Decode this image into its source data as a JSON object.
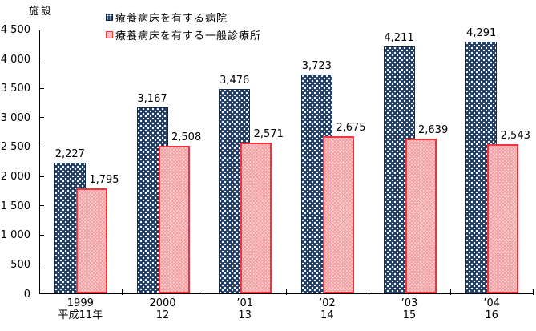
{
  "chart_data": {
    "type": "bar",
    "title": "",
    "ylabel": "施設",
    "xlabel": "",
    "grid": false,
    "legend_position": "top-center",
    "ylim": [
      0,
      4500
    ],
    "ytick_step": 500,
    "ytick_labels": [
      "4 500",
      "4 000",
      "3 500",
      "3 000",
      "2 500",
      "2 000",
      "1 500",
      "1 000",
      "500",
      "0"
    ],
    "categories": [
      {
        "line1": "1999",
        "line2": "平成11年"
      },
      {
        "line1": "2000",
        "line2": "12"
      },
      {
        "line1": "’01",
        "line2": "13"
      },
      {
        "line1": "’02",
        "line2": "14"
      },
      {
        "line1": "’03",
        "line2": "15"
      },
      {
        "line1": "’04",
        "line2": "16"
      }
    ],
    "series": [
      {
        "name": "療養病床を有する病院",
        "values": [
          2227,
          3167,
          3476,
          3723,
          4211,
          4291
        ],
        "labels": [
          "2,227",
          "3,167",
          "3,476",
          "3,723",
          "4,211",
          "4,291"
        ],
        "color": "#1C3A63",
        "pattern": "white-dots"
      },
      {
        "name": "療養病床を有する一般診療所",
        "values": [
          1795,
          2508,
          2571,
          2675,
          2639,
          2543
        ],
        "labels": [
          "1,795",
          "2,508",
          "2,571",
          "2,675",
          "2,639",
          "2,543"
        ],
        "color": "#F5333D",
        "fill": "#FAD0CE",
        "pattern": "red-crosshatch"
      }
    ]
  }
}
